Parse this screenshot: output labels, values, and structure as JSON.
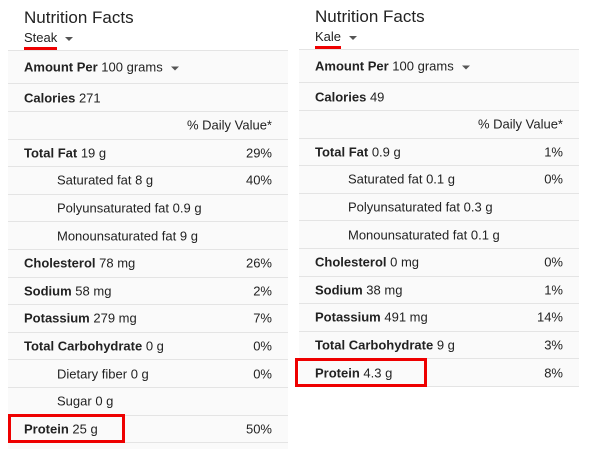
{
  "panels": [
    {
      "title": "Nutrition Facts",
      "food": "Steak",
      "amount": {
        "label": "Amount Per",
        "value": "100 grams"
      },
      "calories": {
        "label": "Calories",
        "value": "271"
      },
      "dv_header": "% Daily Value*",
      "nutrients": [
        {
          "name": "Total Fat",
          "amount": "19 g",
          "dv": "29%",
          "sub": [
            {
              "name": "Saturated fat",
              "amount": "8 g",
              "dv": "40%"
            },
            {
              "name": "Polyunsaturated fat",
              "amount": "0.9 g"
            },
            {
              "name": "Monounsaturated fat",
              "amount": "9 g"
            }
          ]
        },
        {
          "name": "Cholesterol",
          "amount": "78 mg",
          "dv": "26%"
        },
        {
          "name": "Sodium",
          "amount": "58 mg",
          "dv": "2%"
        },
        {
          "name": "Potassium",
          "amount": "279 mg",
          "dv": "7%"
        },
        {
          "name": "Total Carbohydrate",
          "amount": "0 g",
          "dv": "0%",
          "sub": [
            {
              "name": "Dietary fiber",
              "amount": "0 g",
              "dv": "0%"
            },
            {
              "name": "Sugar",
              "amount": "0 g"
            }
          ]
        },
        {
          "name": "Protein",
          "amount": "25 g",
          "dv": "50%"
        }
      ]
    },
    {
      "title": "Nutrition Facts",
      "food": "Kale",
      "amount": {
        "label": "Amount Per",
        "value": "100 grams"
      },
      "calories": {
        "label": "Calories",
        "value": "49"
      },
      "dv_header": "% Daily Value*",
      "nutrients": [
        {
          "name": "Total Fat",
          "amount": "0.9 g",
          "dv": "1%",
          "sub": [
            {
              "name": "Saturated fat",
              "amount": "0.1 g",
              "dv": "0%"
            },
            {
              "name": "Polyunsaturated fat",
              "amount": "0.3 g"
            },
            {
              "name": "Monounsaturated fat",
              "amount": "0.1 g"
            }
          ]
        },
        {
          "name": "Cholesterol",
          "amount": "0 mg",
          "dv": "0%"
        },
        {
          "name": "Sodium",
          "amount": "38 mg",
          "dv": "1%"
        },
        {
          "name": "Potassium",
          "amount": "491 mg",
          "dv": "14%"
        },
        {
          "name": "Total Carbohydrate",
          "amount": "9 g",
          "dv": "3%"
        },
        {
          "name": "Protein",
          "amount": "4.3 g",
          "dv": "8%"
        }
      ]
    }
  ]
}
